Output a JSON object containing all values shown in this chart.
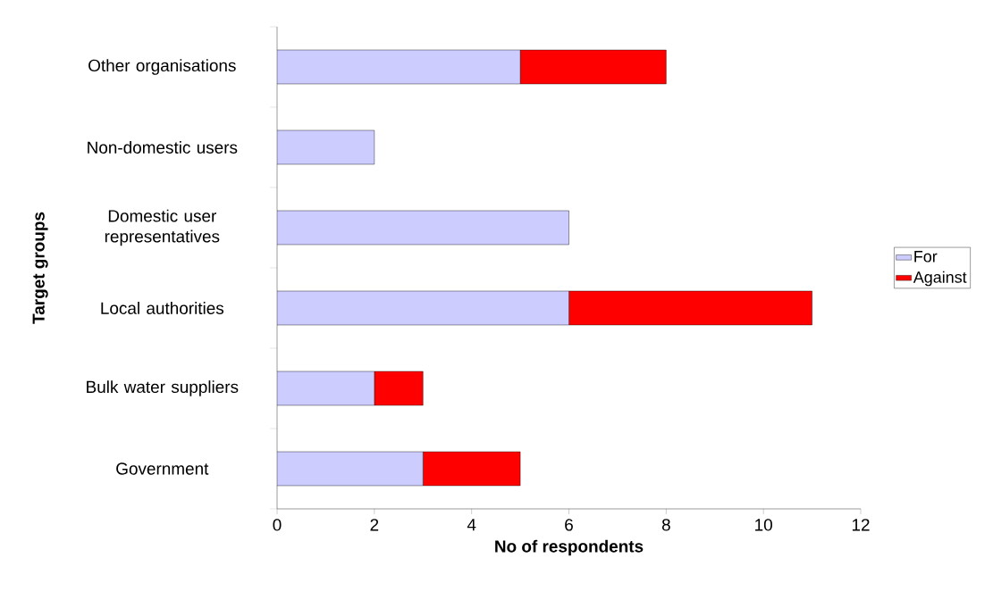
{
  "chart_data": {
    "type": "bar",
    "orientation": "horizontal",
    "stacked": true,
    "xlabel": "No of respondents",
    "ylabel": "Target groups",
    "categories": [
      "Other organisations",
      "Non-domestic users",
      "Domestic user representatives",
      "Local authorities",
      "Bulk water suppliers",
      "Government"
    ],
    "series": [
      {
        "name": "For",
        "color": "#ccccff",
        "values": [
          5,
          2,
          6,
          6,
          2,
          3
        ]
      },
      {
        "name": "Against",
        "color": "#ff0000",
        "values": [
          3,
          0,
          0,
          5,
          1,
          2
        ]
      }
    ],
    "xlim": [
      0,
      12
    ],
    "xticks": [
      0,
      2,
      4,
      6,
      8,
      10,
      12
    ],
    "grid": false,
    "legend": "right"
  }
}
